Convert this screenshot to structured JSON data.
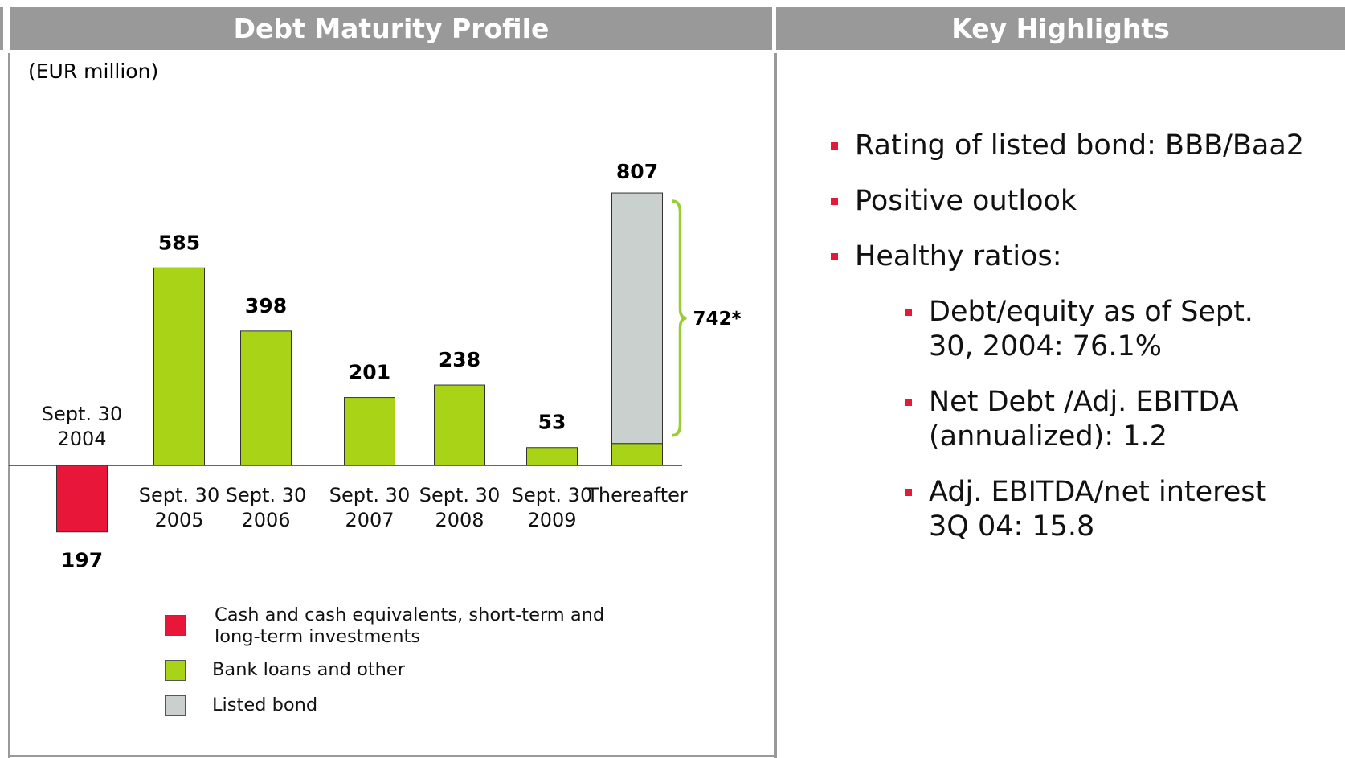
{
  "chart_data": {
    "type": "stacked_bar",
    "title": "Debt Maturity Profile",
    "subtitle": "(EUR million)",
    "categories": [
      "Sept. 30 2004",
      "Sept. 30 2005",
      "Sept. 30 2006",
      "Sept. 30 2007",
      "Sept. 30 2008",
      "Sept. 30 2009",
      "Thereafter"
    ],
    "series": [
      {
        "name": "Cash and cash equivalents, short-term and long-term investments",
        "color": "#e8173a",
        "values": [
          -197,
          null,
          null,
          null,
          null,
          null,
          null
        ],
        "value_labels": [
          "197",
          null,
          null,
          null,
          null,
          null,
          null
        ]
      },
      {
        "name": "Bank loans and other",
        "color": "#a8d317",
        "values": [
          null,
          585,
          398,
          201,
          238,
          53,
          65
        ],
        "value_labels": [
          null,
          "585",
          "398",
          "201",
          "238",
          "53",
          null
        ]
      },
      {
        "name": "Listed bond",
        "color": "#c9d0ce",
        "values": [
          null,
          null,
          null,
          null,
          null,
          null,
          742
        ],
        "value_labels": [
          null,
          null,
          null,
          null,
          null,
          null,
          "742*"
        ]
      }
    ],
    "totals": [
      null,
      null,
      null,
      null,
      null,
      null,
      807
    ],
    "brace_color": "#9acd32"
  },
  "highlights": {
    "title": "Key Highlights",
    "items": [
      {
        "text": "Rating of listed bond: BBB/Baa2",
        "subitems": []
      },
      {
        "text": "Positive outlook",
        "subitems": []
      },
      {
        "text": "Healthy ratios:",
        "subitems": [
          "Debt/equity as of Sept. 30, 2004: 76.1%",
          "Net Debt /Adj. EBITDA (annualized): 1.2",
          "Adj. EBITDA/net interest 3Q 04: 15.8"
        ]
      }
    ]
  }
}
